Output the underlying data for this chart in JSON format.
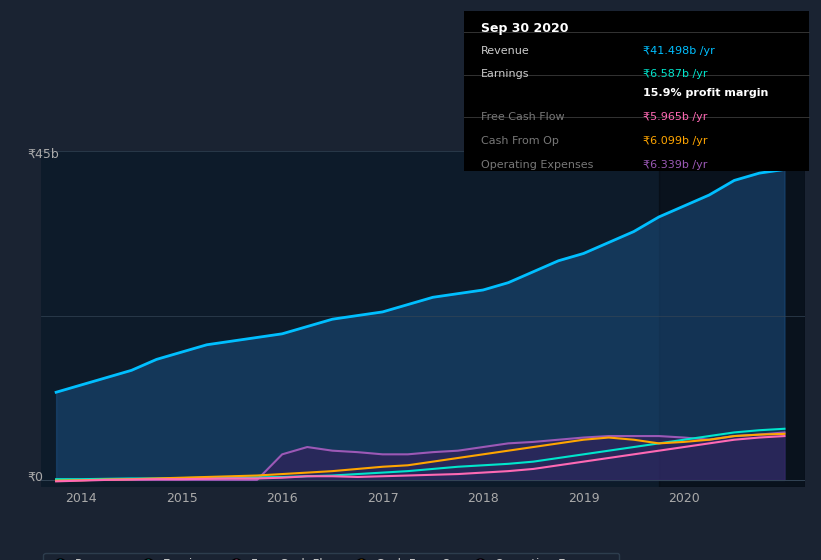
{
  "bg_color": "#1a2332",
  "plot_bg_color": "#0d1b2a",
  "ylabel_text": "₹45b",
  "y0_text": "₹0",
  "x_ticks": [
    "2014",
    "2015",
    "2016",
    "2017",
    "2018",
    "2019",
    "2020"
  ],
  "ylim": [
    0,
    45
  ],
  "infobox": {
    "date": "Sep 30 2020",
    "rows": [
      {
        "label": "Revenue",
        "value": "₹41.498b /yr",
        "value_color": "#00bfff",
        "label_color": "#cccccc"
      },
      {
        "label": "Earnings",
        "value": "₹6.587b /yr",
        "value_color": "#00e5cc",
        "label_color": "#cccccc"
      },
      {
        "label": "",
        "value": "15.9% profit margin",
        "value_color": "#ffffff",
        "label_color": "#cccccc",
        "bold": true
      },
      {
        "label": "Free Cash Flow",
        "value": "₹5.965b /yr",
        "value_color": "#ff69b4",
        "label_color": "#777777"
      },
      {
        "label": "Cash From Op",
        "value": "₹6.099b /yr",
        "value_color": "#ffa500",
        "label_color": "#777777"
      },
      {
        "label": "Operating Expenses",
        "value": "₹6.339b /yr",
        "value_color": "#9b59b6",
        "label_color": "#777777"
      }
    ]
  },
  "series": {
    "revenue": {
      "color": "#00bfff",
      "fill_color": "#1a4a7a",
      "x": [
        2013.75,
        2014.0,
        2014.25,
        2014.5,
        2014.75,
        2015.0,
        2015.25,
        2015.5,
        2015.75,
        2016.0,
        2016.25,
        2016.5,
        2016.75,
        2017.0,
        2017.25,
        2017.5,
        2017.75,
        2018.0,
        2018.25,
        2018.5,
        2018.75,
        2019.0,
        2019.25,
        2019.5,
        2019.75,
        2020.0,
        2020.25,
        2020.5,
        2020.75,
        2021.0
      ],
      "y": [
        12,
        13,
        14,
        15,
        16.5,
        17.5,
        18.5,
        19,
        19.5,
        20,
        21,
        22,
        22.5,
        23,
        24,
        25,
        25.5,
        26,
        27,
        28.5,
        30,
        31,
        32.5,
        34,
        36,
        37.5,
        39,
        41,
        42,
        42.5
      ]
    },
    "earnings": {
      "color": "#00e5cc",
      "x": [
        2013.75,
        2014.0,
        2014.25,
        2014.5,
        2014.75,
        2015.0,
        2015.25,
        2015.5,
        2015.75,
        2016.0,
        2016.25,
        2016.5,
        2016.75,
        2017.0,
        2017.25,
        2017.5,
        2017.75,
        2018.0,
        2018.25,
        2018.5,
        2018.75,
        2019.0,
        2019.25,
        2019.5,
        2019.75,
        2020.0,
        2020.25,
        2020.5,
        2020.75,
        2021.0
      ],
      "y": [
        0.1,
        0.1,
        0.15,
        0.2,
        0.2,
        0.25,
        0.3,
        0.3,
        0.35,
        0.4,
        0.5,
        0.6,
        0.8,
        1.0,
        1.2,
        1.5,
        1.8,
        2.0,
        2.2,
        2.5,
        3.0,
        3.5,
        4.0,
        4.5,
        5.0,
        5.5,
        6.0,
        6.5,
        6.8,
        7.0
      ]
    },
    "free_cash_flow": {
      "color": "#ff69b4",
      "x": [
        2013.75,
        2014.0,
        2014.25,
        2014.5,
        2014.75,
        2015.0,
        2015.25,
        2015.5,
        2015.75,
        2016.0,
        2016.25,
        2016.5,
        2016.75,
        2017.0,
        2017.25,
        2017.5,
        2017.75,
        2018.0,
        2018.25,
        2018.5,
        2018.75,
        2019.0,
        2019.25,
        2019.5,
        2019.75,
        2020.0,
        2020.25,
        2020.5,
        2020.75,
        2021.0
      ],
      "y": [
        -0.2,
        -0.1,
        0.0,
        0.05,
        0.1,
        0.1,
        0.15,
        0.2,
        0.2,
        0.3,
        0.5,
        0.5,
        0.4,
        0.5,
        0.6,
        0.7,
        0.8,
        1.0,
        1.2,
        1.5,
        2.0,
        2.5,
        3.0,
        3.5,
        4.0,
        4.5,
        5.0,
        5.5,
        5.8,
        6.0
      ]
    },
    "cash_from_op": {
      "color": "#ffa500",
      "x": [
        2013.75,
        2014.0,
        2014.25,
        2014.5,
        2014.75,
        2015.0,
        2015.25,
        2015.5,
        2015.75,
        2016.0,
        2016.25,
        2016.5,
        2016.75,
        2017.0,
        2017.25,
        2017.5,
        2017.75,
        2018.0,
        2018.25,
        2018.5,
        2018.75,
        2019.0,
        2019.25,
        2019.5,
        2019.75,
        2020.0,
        2020.25,
        2020.5,
        2020.75,
        2021.0
      ],
      "y": [
        -0.1,
        -0.05,
        0.05,
        0.1,
        0.2,
        0.3,
        0.4,
        0.5,
        0.6,
        0.8,
        1.0,
        1.2,
        1.5,
        1.8,
        2.0,
        2.5,
        3.0,
        3.5,
        4.0,
        4.5,
        5.0,
        5.5,
        5.8,
        5.5,
        5.0,
        5.2,
        5.5,
        6.0,
        6.2,
        6.3
      ]
    },
    "operating_expenses": {
      "color": "#9b59b6",
      "fill_color": "#3d1a5c",
      "x": [
        2013.75,
        2014.0,
        2014.25,
        2014.5,
        2014.75,
        2015.0,
        2015.25,
        2015.5,
        2015.75,
        2016.0,
        2016.25,
        2016.5,
        2016.75,
        2017.0,
        2017.25,
        2017.5,
        2017.75,
        2018.0,
        2018.25,
        2018.5,
        2018.75,
        2019.0,
        2019.25,
        2019.5,
        2019.75,
        2020.0,
        2020.25,
        2020.5,
        2020.75,
        2021.0
      ],
      "y": [
        0.0,
        0.0,
        0.0,
        0.0,
        0.0,
        0.0,
        0.0,
        0.0,
        0.0,
        3.5,
        4.5,
        4.0,
        3.8,
        3.5,
        3.5,
        3.8,
        4.0,
        4.5,
        5.0,
        5.2,
        5.5,
        5.8,
        6.0,
        6.0,
        6.0,
        5.8,
        5.5,
        6.0,
        6.2,
        6.5
      ]
    }
  },
  "legend": [
    {
      "label": "Revenue",
      "color": "#00bfff"
    },
    {
      "label": "Earnings",
      "color": "#00e5cc"
    },
    {
      "label": "Free Cash Flow",
      "color": "#ff69b4"
    },
    {
      "label": "Cash From Op",
      "color": "#ffa500"
    },
    {
      "label": "Operating Expenses",
      "color": "#9b59b6"
    }
  ]
}
